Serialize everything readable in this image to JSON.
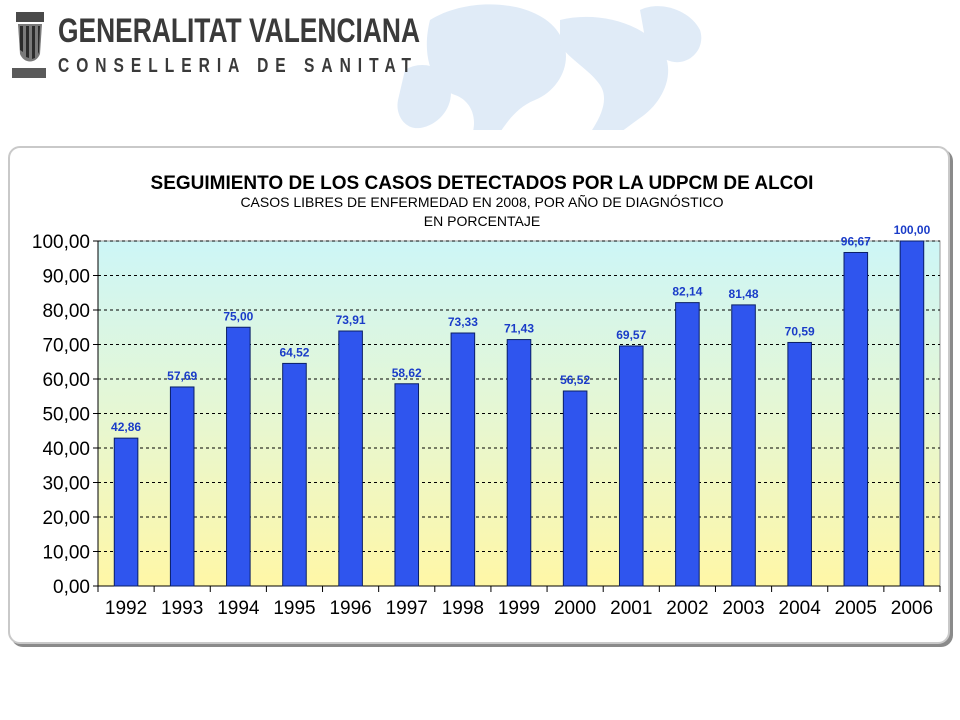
{
  "header": {
    "org": "GENERALITAT VALENCIANA",
    "dept": "CONSELLERIA DE SANITAT"
  },
  "chart_data": {
    "type": "bar",
    "title": "SEGUIMIENTO DE LOS CASOS DETECTADOS POR LA UDPCM DE ALCOI",
    "subtitle": [
      "CASOS LIBRES DE ENFERMEDAD EN 2008, POR AÑO DE DIAGNÓSTICO",
      "EN PORCENTAJE"
    ],
    "categories": [
      "1992",
      "1993",
      "1994",
      "1995",
      "1996",
      "1997",
      "1998",
      "1999",
      "2000",
      "2001",
      "2002",
      "2003",
      "2004",
      "2005",
      "2006"
    ],
    "values": [
      42.86,
      57.69,
      75.0,
      64.52,
      73.91,
      58.62,
      73.33,
      71.43,
      56.52,
      69.57,
      82.14,
      81.48,
      70.59,
      96.67,
      100.0
    ],
    "data_labels": [
      "42,86",
      "57,69",
      "75,00",
      "64,52",
      "73,91",
      "58,62",
      "73,33",
      "71,43",
      "56,52",
      "69,57",
      "82,14",
      "81,48",
      "70,59",
      "96,67",
      "100,00"
    ],
    "ylim": [
      0,
      100
    ],
    "ytick_values": [
      0,
      10,
      20,
      30,
      40,
      50,
      60,
      70,
      80,
      90,
      100
    ],
    "ytick_labels": [
      "0,00",
      "10,00",
      "20,00",
      "30,00",
      "40,00",
      "50,00",
      "60,00",
      "70,00",
      "80,00",
      "90,00",
      "100,00"
    ],
    "grid": true,
    "legend": "none",
    "colors": {
      "bar": "#2f55ee",
      "bar_edge": "#0a1f66",
      "label": "#1a3cc8",
      "plot_bg_top": "#cdf6f7",
      "plot_bg_bottom": "#fff7a6"
    }
  }
}
